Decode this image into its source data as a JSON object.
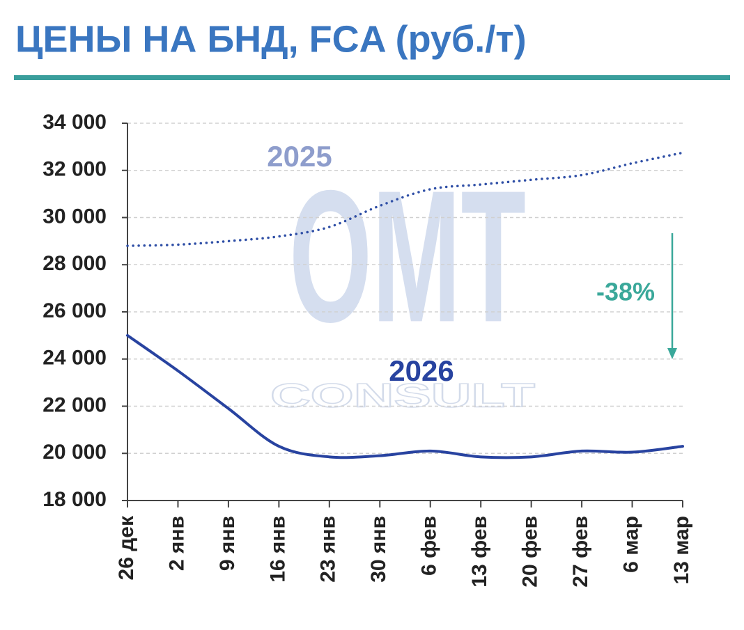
{
  "chart_data": {
    "type": "line",
    "title": "ЦЕНЫ НА БНД, FCA (руб./т)",
    "categories": [
      "26 дек",
      "2 янв",
      "9 янв",
      "16 янв",
      "23 янв",
      "30 янв",
      "6 фев",
      "13 фев",
      "20 фев",
      "27 фев",
      "6 мар",
      "13 мар"
    ],
    "series": [
      {
        "name": "2025",
        "color": "#2f4fa6",
        "dash": "dotted",
        "values": [
          28800,
          28850,
          29000,
          29200,
          29600,
          30500,
          31200,
          31400,
          31600,
          31800,
          32300,
          32750
        ]
      },
      {
        "name": "2026",
        "color": "#2843a0",
        "dash": "solid",
        "values": [
          25000,
          23500,
          21900,
          20300,
          19850,
          19900,
          20100,
          19850,
          19850,
          20100,
          20050,
          20300
        ]
      }
    ],
    "ylim": [
      18000,
      34000
    ],
    "yticks": [
      {
        "value": 18000,
        "label": "18 000"
      },
      {
        "value": 20000,
        "label": "20 000"
      },
      {
        "value": 22000,
        "label": "22 000"
      },
      {
        "value": 24000,
        "label": "24 000"
      },
      {
        "value": 26000,
        "label": "26 000"
      },
      {
        "value": 28000,
        "label": "28 000"
      },
      {
        "value": 30000,
        "label": "30 000"
      },
      {
        "value": 32000,
        "label": "32 000"
      },
      {
        "value": 34000,
        "label": "34 000"
      }
    ],
    "grid": true,
    "change_label": "-38%",
    "watermark": [
      "OMT",
      "CONSULT"
    ]
  }
}
